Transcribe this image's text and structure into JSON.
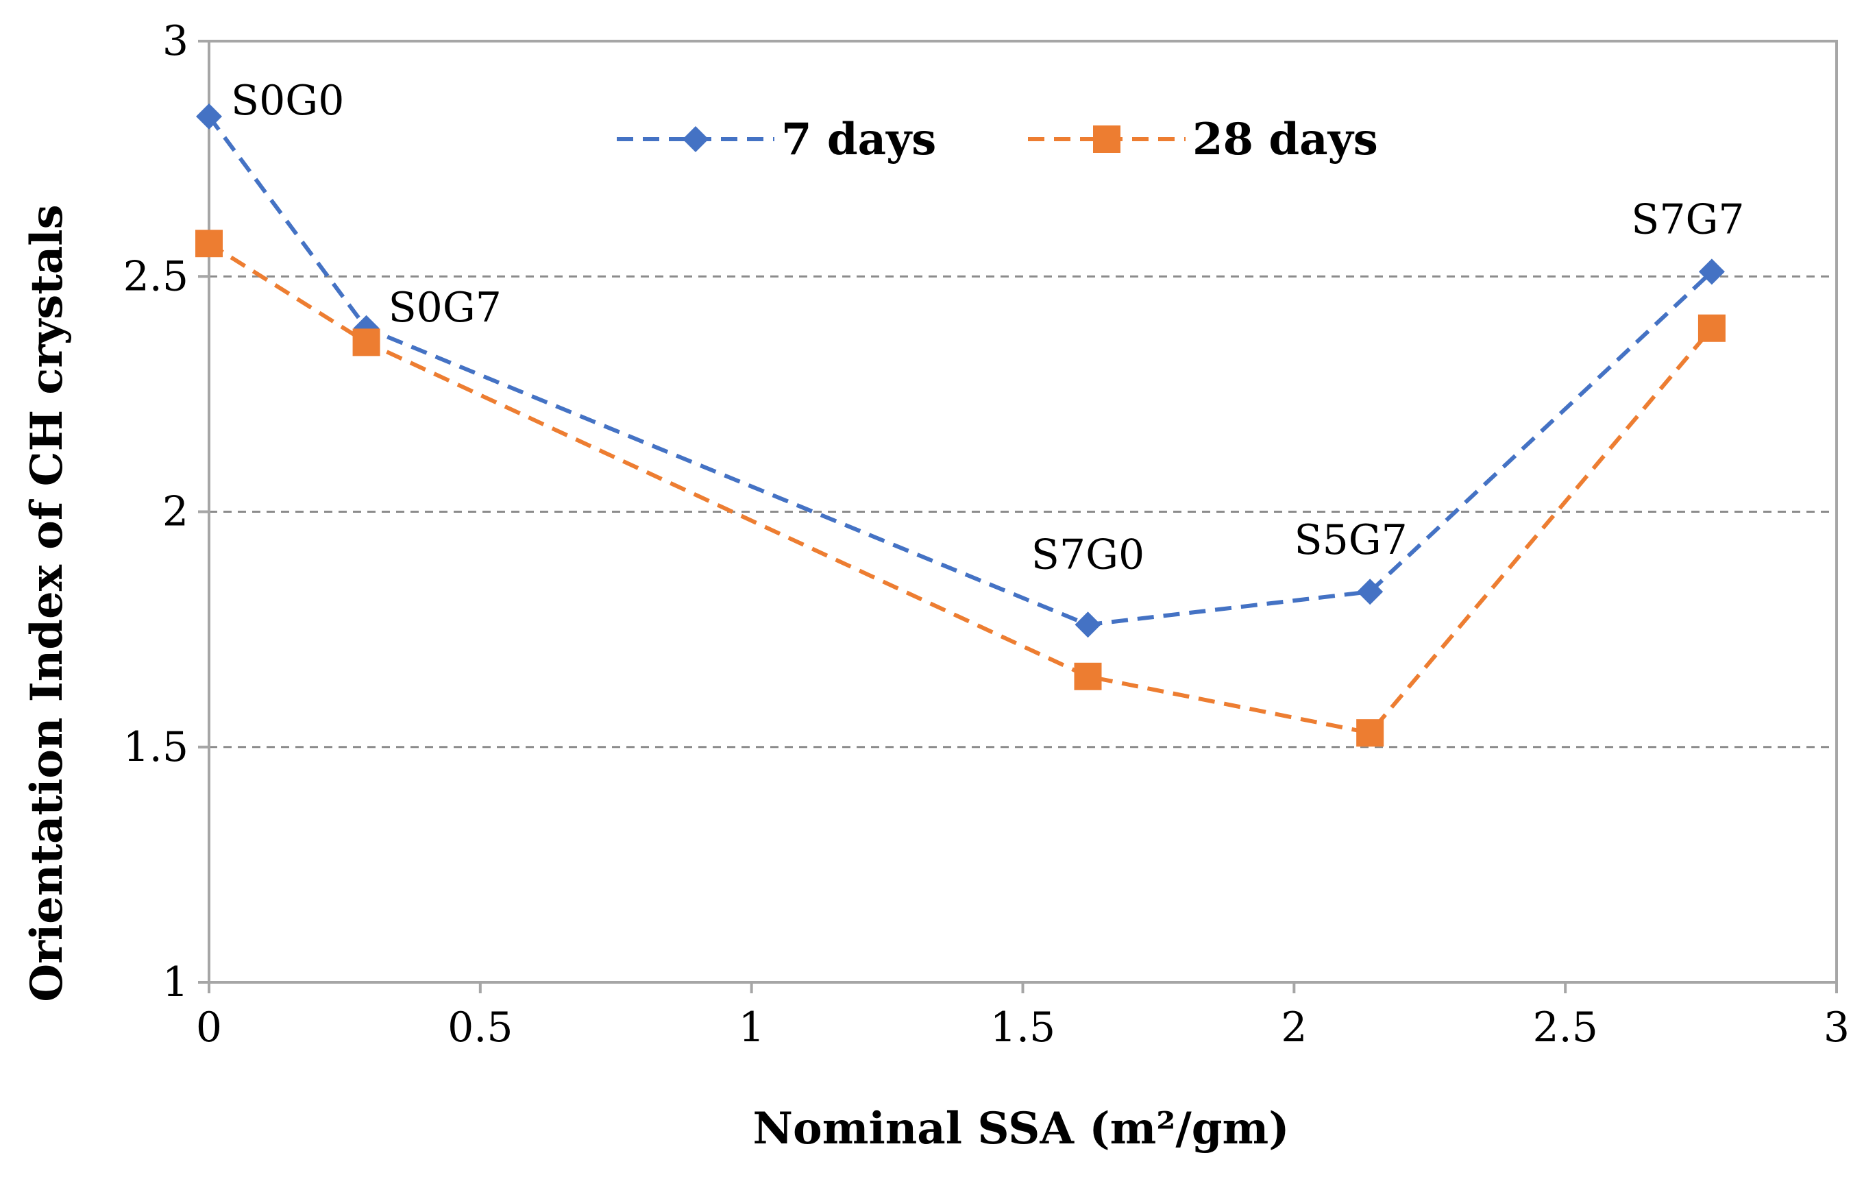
{
  "chart_data": {
    "type": "line",
    "title": "",
    "xlabel": "Nominal SSA (m²/gm)",
    "ylabel": "Orientation Index of CH crystals",
    "xlim": [
      0,
      3
    ],
    "ylim": [
      1,
      3
    ],
    "x_ticks": [
      "0",
      "0.5",
      "1",
      "1.5",
      "2",
      "2.5",
      "3"
    ],
    "y_ticks": [
      "1",
      "1.5",
      "2",
      "2.5",
      "3"
    ],
    "grid": "horizontal dashed",
    "legend_position": "top-center",
    "x": [
      0,
      0.29,
      1.62,
      2.14,
      2.77
    ],
    "point_labels": [
      "S0G0",
      "S0G7",
      "S7G0",
      "S5G7",
      "S7G7"
    ],
    "series": [
      {
        "name": "7 days",
        "values": [
          2.84,
          2.39,
          1.76,
          1.83,
          2.51
        ],
        "color": "#4472C4",
        "marker": "diamond",
        "line": "dashed"
      },
      {
        "name": "28 days",
        "values": [
          2.57,
          2.36,
          1.65,
          1.53,
          2.39
        ],
        "color": "#ED7D31",
        "marker": "square",
        "line": "dashed"
      }
    ]
  }
}
